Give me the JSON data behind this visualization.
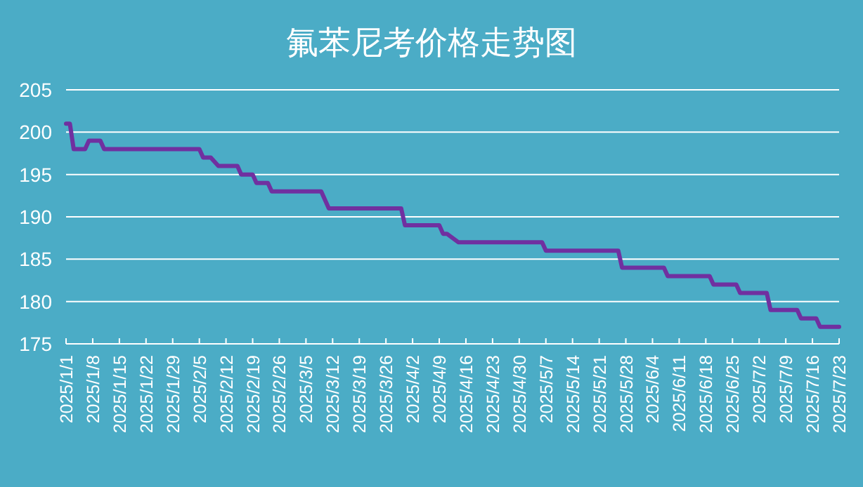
{
  "chart_data": {
    "type": "line",
    "title": "氟苯尼考价格走势图",
    "x": [
      "2025-01-01",
      "2025-01-02",
      "2025-01-03",
      "2025-01-06",
      "2025-01-07",
      "2025-01-10",
      "2025-01-11",
      "2025-02-05",
      "2025-02-06",
      "2025-02-08",
      "2025-02-10",
      "2025-02-15",
      "2025-02-16",
      "2025-02-19",
      "2025-02-20",
      "2025-02-23",
      "2025-02-24",
      "2025-03-09",
      "2025-03-11",
      "2025-03-30",
      "2025-03-31",
      "2025-04-09",
      "2025-04-10",
      "2025-04-11",
      "2025-04-14",
      "2025-05-06",
      "2025-05-07",
      "2025-05-26",
      "2025-05-27",
      "2025-06-07",
      "2025-06-08",
      "2025-06-19",
      "2025-06-20",
      "2025-06-26",
      "2025-06-27",
      "2025-07-04",
      "2025-07-05",
      "2025-07-12",
      "2025-07-13",
      "2025-07-17",
      "2025-07-18",
      "2025-07-23"
    ],
    "series": [
      {
        "color": "#7030a0",
        "values": [
          201,
          201,
          198,
          198,
          199,
          199,
          198,
          198,
          197,
          197,
          196,
          196,
          195,
          195,
          194,
          194,
          193,
          193,
          191,
          191,
          189,
          189,
          188,
          188,
          187,
          187,
          186,
          186,
          184,
          184,
          183,
          183,
          182,
          182,
          181,
          181,
          179,
          179,
          178,
          178,
          177,
          177
        ]
      }
    ],
    "xlim": [
      "2025-01-01",
      "2025-07-23"
    ],
    "xticks": [
      {
        "value": "2025-01-01",
        "label": "2025/1/1"
      },
      {
        "value": "2025-01-08",
        "label": "2025/1/8"
      },
      {
        "value": "2025-01-15",
        "label": "2025/1/15"
      },
      {
        "value": "2025-01-22",
        "label": "2025/1/22"
      },
      {
        "value": "2025-01-29",
        "label": "2025/1/29"
      },
      {
        "value": "2025-02-05",
        "label": "2025/2/5"
      },
      {
        "value": "2025-02-12",
        "label": "2025/2/12"
      },
      {
        "value": "2025-02-19",
        "label": "2025/2/19"
      },
      {
        "value": "2025-02-26",
        "label": "2025/2/26"
      },
      {
        "value": "2025-03-05",
        "label": "2025/3/5"
      },
      {
        "value": "2025-03-12",
        "label": "2025/3/12"
      },
      {
        "value": "2025-03-19",
        "label": "2025/3/19"
      },
      {
        "value": "2025-03-26",
        "label": "2025/3/26"
      },
      {
        "value": "2025-04-02",
        "label": "2025/4/2"
      },
      {
        "value": "2025-04-09",
        "label": "2025/4/9"
      },
      {
        "value": "2025-04-16",
        "label": "2025/4/16"
      },
      {
        "value": "2025-04-23",
        "label": "2025/4/23"
      },
      {
        "value": "2025-04-30",
        "label": "2025/4/30"
      },
      {
        "value": "2025-05-07",
        "label": "2025/5/7"
      },
      {
        "value": "2025-05-14",
        "label": "2025/5/14"
      },
      {
        "value": "2025-05-21",
        "label": "2025/5/21"
      },
      {
        "value": "2025-05-28",
        "label": "2025/5/28"
      },
      {
        "value": "2025-06-04",
        "label": "2025/6/4"
      },
      {
        "value": "2025-06-11",
        "label": "2025/6/11"
      },
      {
        "value": "2025-06-18",
        "label": "2025/6/18"
      },
      {
        "value": "2025-06-25",
        "label": "2025/6/25"
      },
      {
        "value": "2025-07-02",
        "label": "2025/7/2"
      },
      {
        "value": "2025-07-09",
        "label": "2025/7/9"
      },
      {
        "value": "2025-07-16",
        "label": "2025/7/16"
      },
      {
        "value": "2025-07-23",
        "label": "2025/7/23"
      }
    ],
    "ylim": [
      175,
      205
    ],
    "yticks": [
      175,
      180,
      185,
      190,
      195,
      200,
      205
    ],
    "grid": "y",
    "marker": "none",
    "line_style": "solid"
  }
}
